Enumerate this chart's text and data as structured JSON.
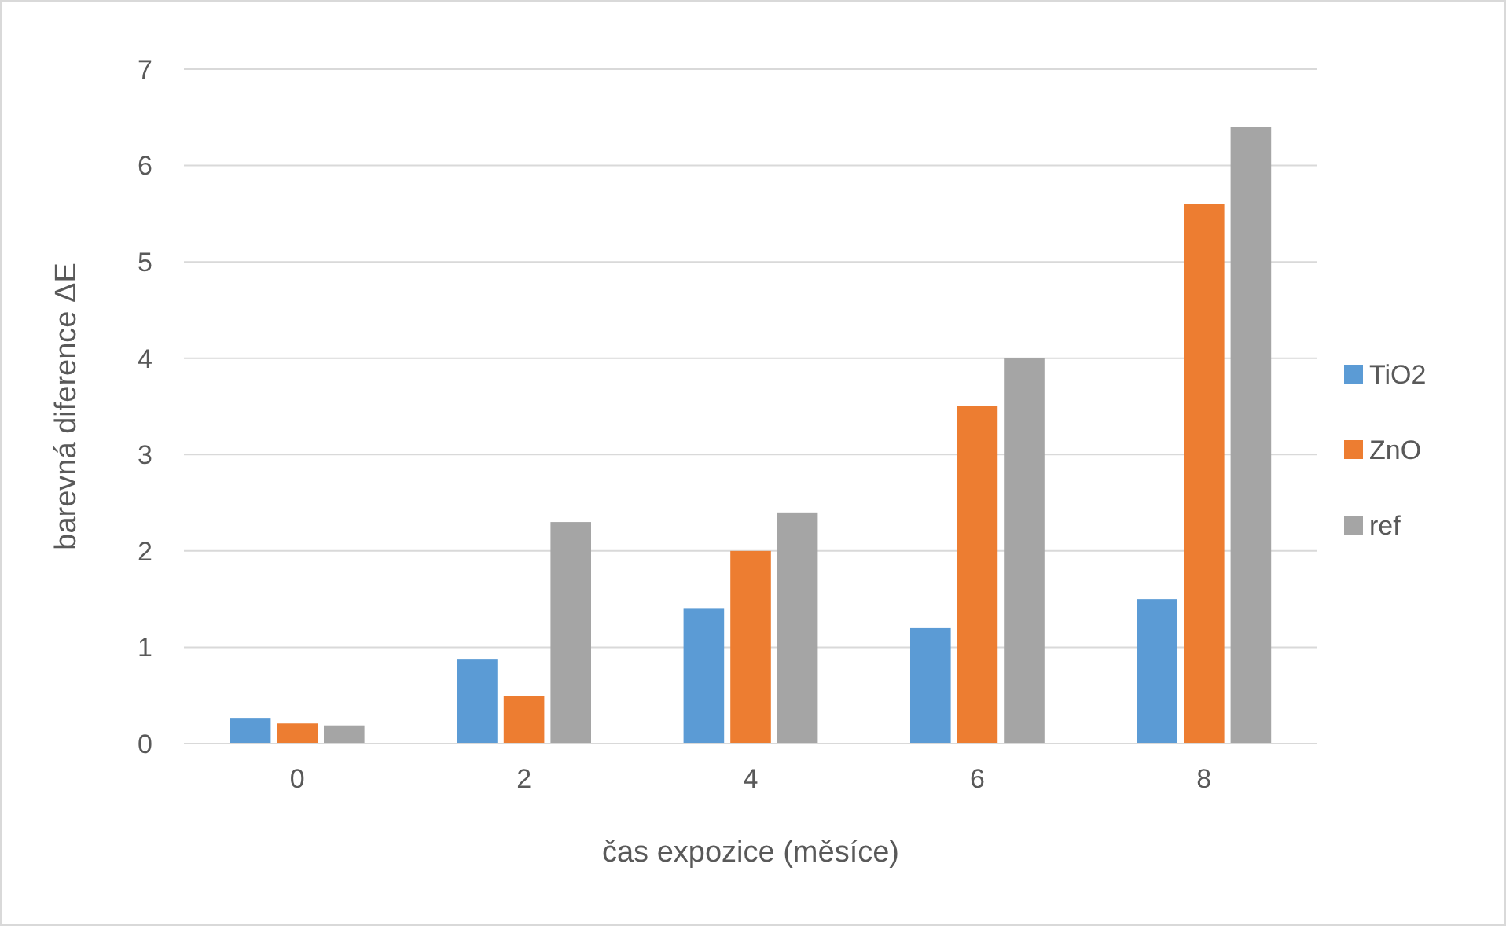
{
  "chart_data": {
    "type": "bar",
    "xlabel": "čas expozice (měsíce)",
    "ylabel": "barevná diference ΔE",
    "categories": [
      "0",
      "2",
      "4",
      "6",
      "8"
    ],
    "series": [
      {
        "name": "TiO2",
        "color": "#5b9bd5",
        "values": [
          0.26,
          0.88,
          1.4,
          1.2,
          1.5
        ]
      },
      {
        "name": "ZnO",
        "color": "#ed7d31",
        "values": [
          0.21,
          0.49,
          2,
          3.5,
          5.6
        ]
      },
      {
        "name": "ref",
        "color": "#a5a5a5",
        "values": [
          0.19,
          2.3,
          2.4,
          4,
          6.4
        ]
      }
    ],
    "ylim": [
      0,
      7
    ],
    "yticks": [
      0,
      1,
      2,
      3,
      4,
      5,
      6,
      7
    ],
    "grid": "y",
    "legend": "right"
  }
}
